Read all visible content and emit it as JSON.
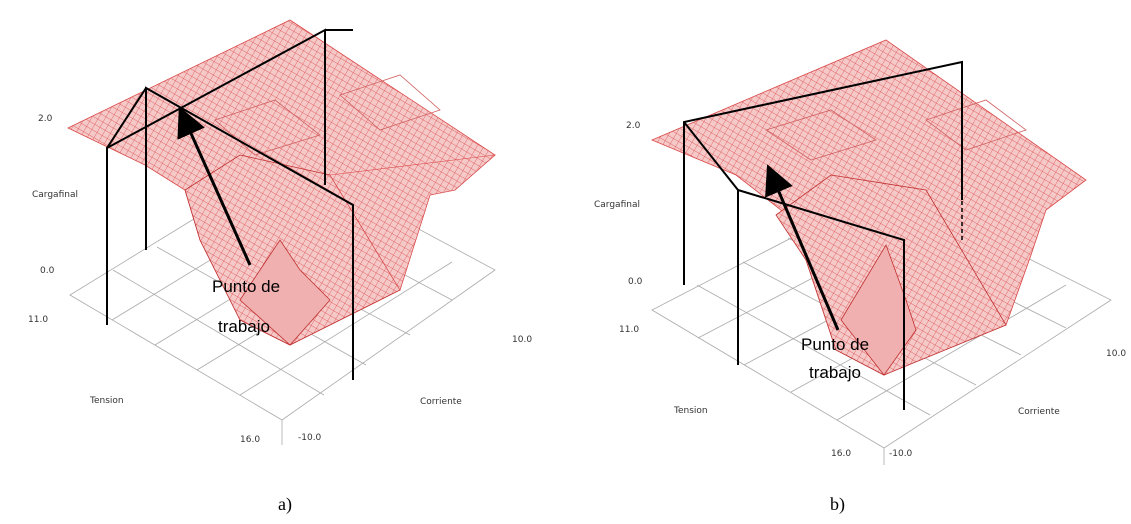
{
  "chart_data": [
    {
      "type": "surface",
      "caption": "a)",
      "zlabel": "Cargafinal",
      "xlabel": "Tension",
      "ylabel": "Corriente",
      "z_ticks": [
        "2.0",
        "0.0"
      ],
      "x_ticks": [
        "11.0",
        "16.0"
      ],
      "y_ticks": [
        "-10.0",
        "10.0"
      ],
      "annotation": [
        "Punto de",
        "trabajo"
      ],
      "surface_color": "#e06060"
    },
    {
      "type": "surface",
      "caption": "b)",
      "zlabel": "Cargafinal",
      "xlabel": "Tension",
      "ylabel": "Corriente",
      "z_ticks": [
        "2.0",
        "0.0"
      ],
      "x_ticks": [
        "11.0",
        "16.0"
      ],
      "y_ticks": [
        "-10.0",
        "10.0"
      ],
      "annotation": [
        "Punto de",
        "trabajo"
      ],
      "surface_color": "#e06060"
    }
  ]
}
